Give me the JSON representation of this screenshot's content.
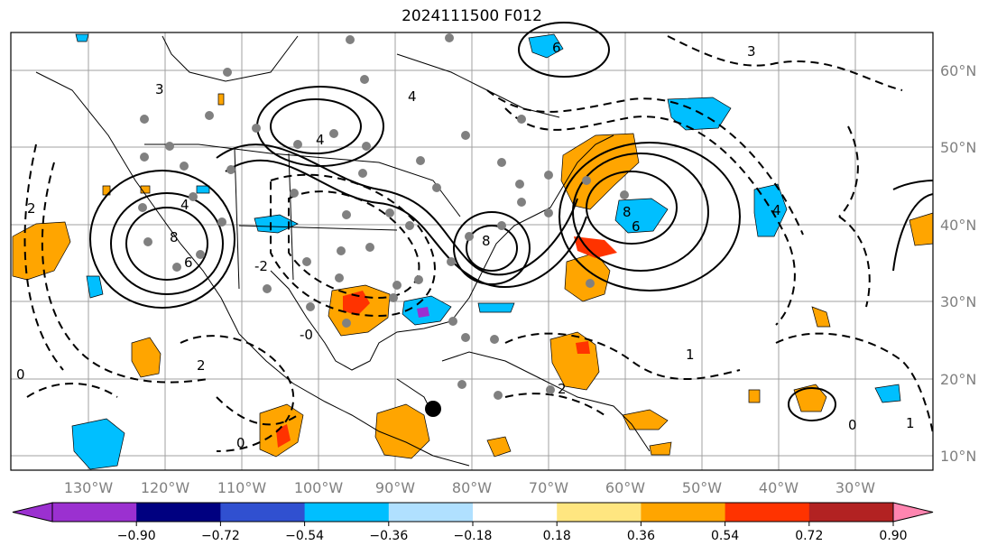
{
  "title": "2024111500 F012",
  "lon_labels": [
    "130°W",
    "120°W",
    "110°W",
    "100°W",
    "90°W",
    "80°W",
    "70°W",
    "60°W",
    "50°W",
    "40°W",
    "30°W"
  ],
  "lat_labels": [
    "60°N",
    "50°N",
    "40°N",
    "30°N",
    "20°N",
    "10°N"
  ],
  "colorbar": {
    "ticks": [
      "−0.90",
      "−0.72",
      "−0.54",
      "−0.36",
      "−0.18",
      "0.18",
      "0.36",
      "0.54",
      "0.72",
      "0.90"
    ],
    "colors": [
      "#9b30d0",
      "#000080",
      "#3050d0",
      "#00bfff",
      "#b0e0ff",
      "#ffffff",
      "#ffe680",
      "#ffa500",
      "#ff3300",
      "#b22222",
      "#ff85b0"
    ]
  },
  "contour_labels": [
    {
      "text": "3"
    },
    {
      "text": "2"
    },
    {
      "text": "4"
    },
    {
      "text": "8"
    },
    {
      "text": "6"
    },
    {
      "text": "4"
    },
    {
      "text": "6"
    },
    {
      "text": "8"
    },
    {
      "text": "6"
    },
    {
      "text": "0"
    },
    {
      "text": "2"
    },
    {
      "text": "0"
    },
    {
      "text": "1"
    },
    {
      "text": "0"
    },
    {
      "text": "1"
    },
    {
      "text": "2"
    },
    {
      "text": "-2"
    },
    {
      "text": "-0"
    },
    {
      "text": "8"
    },
    {
      "text": "4"
    },
    {
      "text": "3"
    },
    {
      "text": "4"
    }
  ],
  "fill_colors": {
    "orange": "#ffa500",
    "red": "#ff3300",
    "blue": "#00bfff",
    "purple": "#9b30d0"
  }
}
